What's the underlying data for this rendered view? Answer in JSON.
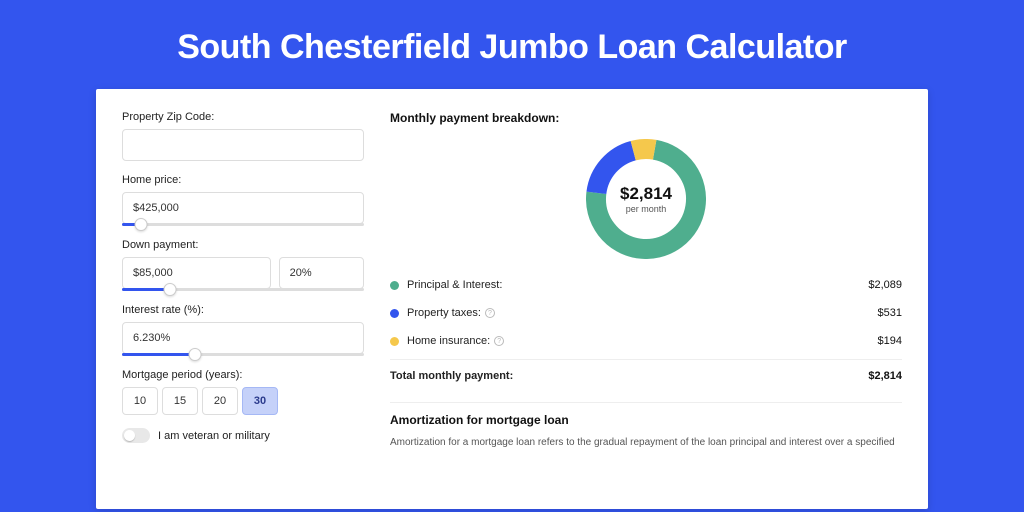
{
  "page": {
    "title": "South Chesterfield Jumbo Loan Calculator",
    "background_color": "#3355ee",
    "title_color": "#ffffff",
    "title_fontsize": 34
  },
  "form": {
    "zip": {
      "label": "Property Zip Code:",
      "value": ""
    },
    "home_price": {
      "label": "Home price:",
      "value": "$425,000",
      "slider_pct": 8
    },
    "down_payment": {
      "label": "Down payment:",
      "amount": "$85,000",
      "percent": "20%",
      "slider_pct": 20
    },
    "interest_rate": {
      "label": "Interest rate (%):",
      "value": "6.230%",
      "slider_pct": 30
    },
    "mortgage_period": {
      "label": "Mortgage period (years):",
      "options": [
        "10",
        "15",
        "20",
        "30"
      ],
      "selected": "30"
    },
    "veteran": {
      "label": "I am veteran or military",
      "checked": false
    }
  },
  "breakdown": {
    "title": "Monthly payment breakdown:",
    "donut": {
      "amount": "$2,814",
      "sub": "per month",
      "slices": [
        {
          "label": "Principal & Interest",
          "value": 2089,
          "pct": 74.2,
          "color": "#4fae8e"
        },
        {
          "label": "Property taxes",
          "value": 531,
          "pct": 18.9,
          "color": "#3355ee"
        },
        {
          "label": "Home insurance",
          "value": 194,
          "pct": 6.9,
          "color": "#f5c84c"
        }
      ],
      "thickness": 20,
      "outer_radius": 60,
      "background": "#ffffff",
      "start_angle": -80
    },
    "rows": [
      {
        "color": "#4fae8e",
        "label": "Principal & Interest:",
        "value": "$2,089",
        "info": false
      },
      {
        "color": "#3355ee",
        "label": "Property taxes:",
        "value": "$531",
        "info": true
      },
      {
        "color": "#f5c84c",
        "label": "Home insurance:",
        "value": "$194",
        "info": true
      }
    ],
    "total": {
      "label": "Total monthly payment:",
      "value": "$2,814"
    }
  },
  "amortization": {
    "title": "Amortization for mortgage loan",
    "text": "Amortization for a mortgage loan refers to the gradual repayment of the loan principal and interest over a specified"
  },
  "styles": {
    "input_border": "#dddddd",
    "slider_fill": "#3355ee",
    "selected_bg": "#c5d1f9",
    "divider": "#eeeeee"
  }
}
